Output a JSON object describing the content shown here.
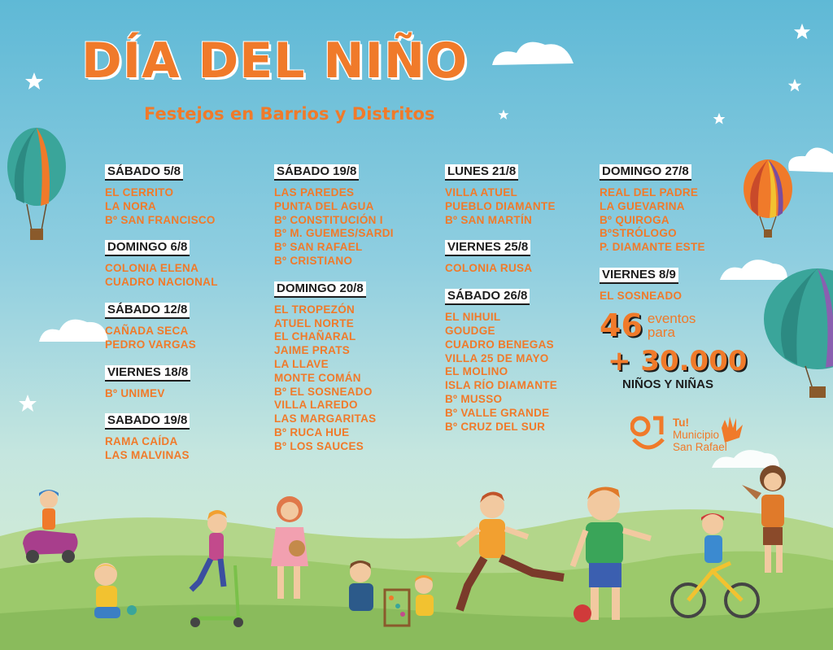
{
  "header": {
    "title": "DÍA DEL NIÑO",
    "subtitle": "Festejos en Barrios y Distritos"
  },
  "columns": [
    {
      "groups": [
        {
          "day": "SÁBADO 5/8",
          "places": [
            "EL CERRITO",
            "LA NORA",
            "Bº SAN FRANCISCO"
          ]
        },
        {
          "day": "DOMINGO 6/8",
          "places": [
            "COLONIA ELENA",
            "CUADRO NACIONAL"
          ]
        },
        {
          "day": "SÁBADO 12/8",
          "places": [
            "CAÑADA SECA",
            "PEDRO VARGAS"
          ]
        },
        {
          "day": "VIERNES 18/8",
          "places": [
            "Bº UNIMEV"
          ]
        },
        {
          "day": "SABADO 19/8",
          "places": [
            "RAMA CAÍDA",
            "LAS MALVINAS"
          ]
        }
      ]
    },
    {
      "groups": [
        {
          "day": "SÁBADO 19/8",
          "places": [
            "LAS PAREDES",
            "PUNTA DEL AGUA",
            "Bº CONSTITUCIÓN I",
            "Bº M. GUEMES/SARDI",
            "Bº SAN RAFAEL",
            "Bº CRISTIANO"
          ]
        },
        {
          "day": "DOMINGO 20/8",
          "places": [
            "EL TROPEZÓN",
            "ATUEL NORTE",
            "EL CHAÑARAL",
            "JAIME PRATS",
            "LA LLAVE",
            "MONTE COMÁN",
            "Bº EL SOSNEADO",
            "VILLA LAREDO",
            "LAS MARGARITAS",
            "Bº RUCA HUE",
            "Bº LOS SAUCES"
          ]
        }
      ]
    },
    {
      "groups": [
        {
          "day": "LUNES 21/8",
          "places": [
            "VILLA ATUEL",
            "PUEBLO DIAMANTE",
            "Bº SAN MARTÍN"
          ]
        },
        {
          "day": "VIERNES 25/8",
          "places": [
            "COLONIA RUSA"
          ]
        },
        {
          "day": "SÁBADO 26/8",
          "places": [
            "EL NIHUIL",
            "GOUDGE",
            "CUADRO BENEGAS",
            "VILLA 25 DE MAYO",
            "EL MOLINO",
            "ISLA RÍO DIAMANTE",
            "Bº MUSSO",
            "Bº VALLE GRANDE",
            "Bº CRUZ DEL SUR"
          ]
        }
      ]
    },
    {
      "groups": [
        {
          "day": "DOMINGO 27/8",
          "places": [
            "REAL DEL PADRE",
            "LA GUEVARINA",
            "Bº QUIROGA",
            "BºSTRÓLOGO",
            "P. DIAMANTE ESTE"
          ]
        },
        {
          "day": "VIERNES 8/9",
          "places": [
            "EL SOSNEADO"
          ]
        }
      ]
    }
  ],
  "stats": {
    "events_count": "46",
    "events_word": "eventos",
    "events_para": "para",
    "kids_count": "+ 30.000",
    "kids_label": "NIÑOS Y NIÑAS"
  },
  "logo": {
    "line1": "Tu!",
    "line2": "Municipio",
    "line3": "San Rafael"
  },
  "colors": {
    "accent": "#f07a2a",
    "text_dark": "#1d1d1d",
    "sky": "#5fb9d6",
    "grass": "#9cc96b"
  }
}
